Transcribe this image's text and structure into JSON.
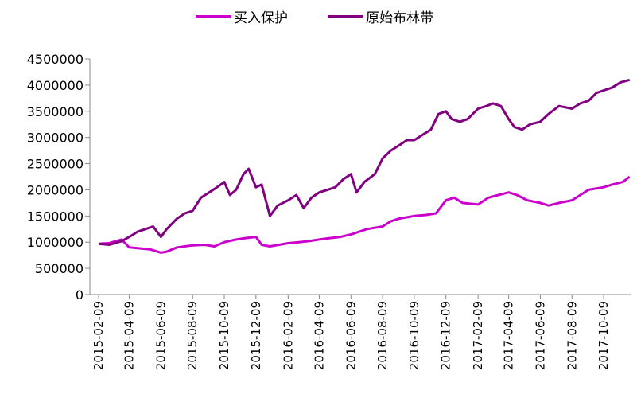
{
  "chart_data": {
    "type": "line",
    "title": "",
    "xlabel": "",
    "ylabel": "",
    "ylim": [
      0,
      4500000
    ],
    "yticks": [
      0,
      500000,
      1000000,
      1500000,
      2000000,
      2500000,
      3000000,
      3500000,
      4000000,
      4500000
    ],
    "ytick_labels": [
      "0",
      "500000",
      "1000000",
      "1500000",
      "2000000",
      "2500000",
      "3000000",
      "3500000",
      "4000000",
      "4500000"
    ],
    "xlim": [
      "2015-01-23",
      "2017-11-30"
    ],
    "xtick_labels": [
      "2015-02-09",
      "2015-04-09",
      "2015-06-09",
      "2015-08-09",
      "2015-10-09",
      "2015-12-09",
      "2016-02-09",
      "2016-04-09",
      "2016-06-09",
      "2016-08-09",
      "2016-10-09",
      "2016-12-09",
      "2017-02-09",
      "2017-04-09",
      "2017-06-09",
      "2017-08-09",
      "2017-10-09"
    ],
    "grid": false,
    "legend_position": "top",
    "series": [
      {
        "name": "买入保护",
        "color": "#CC00CC",
        "x": [
          "2015-02-09",
          "2015-03-01",
          "2015-03-25",
          "2015-04-09",
          "2015-05-01",
          "2015-05-20",
          "2015-06-09",
          "2015-06-20",
          "2015-07-10",
          "2015-08-09",
          "2015-09-01",
          "2015-09-20",
          "2015-10-09",
          "2015-11-01",
          "2015-11-20",
          "2015-12-09",
          "2015-12-20",
          "2016-01-05",
          "2016-02-09",
          "2016-03-01",
          "2016-03-20",
          "2016-04-09",
          "2016-05-01",
          "2016-05-20",
          "2016-06-09",
          "2016-06-25",
          "2016-07-10",
          "2016-08-09",
          "2016-08-25",
          "2016-09-10",
          "2016-10-09",
          "2016-11-01",
          "2016-11-20",
          "2016-12-09",
          "2016-12-25",
          "2017-01-10",
          "2017-02-09",
          "2017-03-01",
          "2017-03-20",
          "2017-04-09",
          "2017-04-25",
          "2017-05-15",
          "2017-06-09",
          "2017-06-25",
          "2017-07-15",
          "2017-08-09",
          "2017-08-25",
          "2017-09-10",
          "2017-10-09",
          "2017-10-25",
          "2017-11-15",
          "2017-11-28"
        ],
        "y": [
          970000,
          980000,
          1050000,
          900000,
          880000,
          860000,
          800000,
          820000,
          900000,
          940000,
          950000,
          920000,
          1000000,
          1050000,
          1080000,
          1100000,
          950000,
          920000,
          980000,
          1000000,
          1020000,
          1050000,
          1080000,
          1100000,
          1150000,
          1200000,
          1250000,
          1300000,
          1400000,
          1450000,
          1500000,
          1520000,
          1550000,
          1800000,
          1850000,
          1750000,
          1720000,
          1850000,
          1900000,
          1950000,
          1900000,
          1800000,
          1750000,
          1700000,
          1750000,
          1800000,
          1900000,
          2000000,
          2050000,
          2100000,
          2150000,
          2250000
        ]
      },
      {
        "name": "原始布林带",
        "color": "#800080",
        "x": [
          "2015-02-09",
          "2015-03-01",
          "2015-03-25",
          "2015-04-09",
          "2015-04-25",
          "2015-05-10",
          "2015-05-25",
          "2015-06-09",
          "2015-06-20",
          "2015-07-10",
          "2015-07-25",
          "2015-08-09",
          "2015-08-25",
          "2015-09-10",
          "2015-09-25",
          "2015-10-09",
          "2015-10-20",
          "2015-11-01",
          "2015-11-15",
          "2015-11-25",
          "2015-12-09",
          "2015-12-20",
          "2016-01-05",
          "2016-01-20",
          "2016-02-09",
          "2016-02-25",
          "2016-03-10",
          "2016-03-25",
          "2016-04-09",
          "2016-04-25",
          "2016-05-10",
          "2016-05-25",
          "2016-06-09",
          "2016-06-20",
          "2016-07-05",
          "2016-07-25",
          "2016-08-09",
          "2016-08-25",
          "2016-09-10",
          "2016-09-25",
          "2016-10-09",
          "2016-10-25",
          "2016-11-10",
          "2016-11-25",
          "2016-12-09",
          "2016-12-20",
          "2017-01-05",
          "2017-01-20",
          "2017-02-09",
          "2017-02-25",
          "2017-03-10",
          "2017-03-25",
          "2017-04-09",
          "2017-04-20",
          "2017-05-05",
          "2017-05-20",
          "2017-06-09",
          "2017-06-25",
          "2017-07-15",
          "2017-08-09",
          "2017-08-25",
          "2017-09-10",
          "2017-09-25",
          "2017-10-09",
          "2017-10-25",
          "2017-11-10",
          "2017-11-28"
        ],
        "y": [
          970000,
          950000,
          1020000,
          1100000,
          1200000,
          1250000,
          1300000,
          1100000,
          1250000,
          1450000,
          1550000,
          1600000,
          1850000,
          1950000,
          2050000,
          2150000,
          1900000,
          2000000,
          2300000,
          2400000,
          2050000,
          2100000,
          1500000,
          1700000,
          1800000,
          1900000,
          1650000,
          1850000,
          1950000,
          2000000,
          2050000,
          2200000,
          2300000,
          1950000,
          2150000,
          2300000,
          2600000,
          2750000,
          2850000,
          2950000,
          2950000,
          3050000,
          3150000,
          3450000,
          3500000,
          3350000,
          3300000,
          3350000,
          3550000,
          3600000,
          3650000,
          3600000,
          3350000,
          3200000,
          3150000,
          3250000,
          3300000,
          3450000,
          3600000,
          3550000,
          3650000,
          3700000,
          3850000,
          3900000,
          3950000,
          4050000,
          4100000
        ]
      }
    ]
  }
}
